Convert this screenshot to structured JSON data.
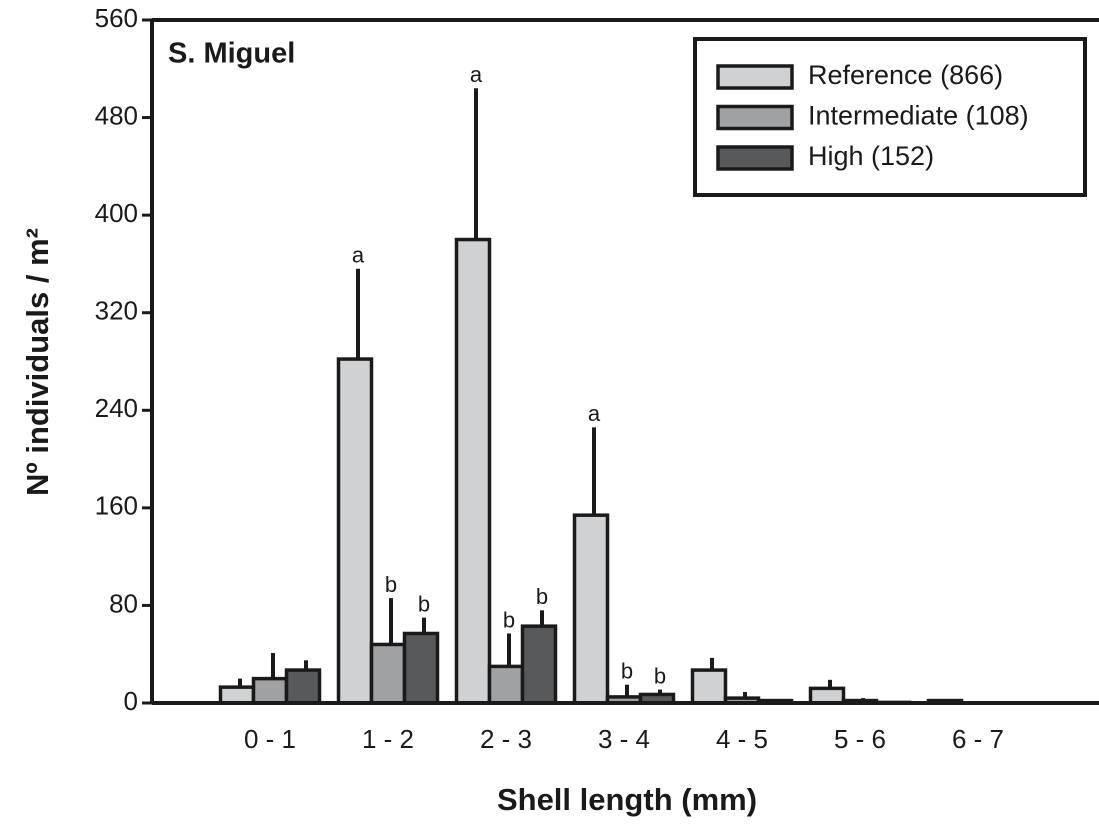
{
  "chart_data": {
    "type": "bar",
    "panel_label": "S. Miguel",
    "xlabel": "Shell length (mm)",
    "ylabel": "Nº individuals / m²",
    "categories": [
      "0 - 1",
      "1 - 2",
      "2 - 3",
      "3 - 4",
      "4 - 5",
      "5 - 6",
      "6 - 7"
    ],
    "series": [
      {
        "name": "Reference (866)",
        "color": "#d0d1d3",
        "values": [
          13,
          282,
          380,
          154,
          27,
          12,
          2
        ],
        "errors": [
          7,
          74,
          124,
          72,
          10,
          7,
          1
        ],
        "annotations": [
          null,
          "a",
          "a",
          "a",
          null,
          null,
          null
        ]
      },
      {
        "name": "Intermediate (108)",
        "color": "#a0a1a3",
        "values": [
          20,
          48,
          30,
          5,
          4,
          2,
          0
        ],
        "errors": [
          21,
          38,
          27,
          10,
          5,
          2,
          0
        ],
        "annotations": [
          null,
          "b",
          "b",
          "b",
          null,
          null,
          null
        ]
      },
      {
        "name": "High (152)",
        "color": "#58595b",
        "values": [
          27,
          57,
          63,
          7,
          2,
          0.5,
          0
        ],
        "errors": [
          8,
          13,
          13,
          4,
          1,
          0.5,
          0
        ],
        "annotations": [
          null,
          "b",
          "b",
          "b",
          null,
          null,
          null
        ]
      }
    ],
    "ylim": [
      0,
      560
    ],
    "yticks": [
      0,
      80,
      160,
      240,
      320,
      400,
      480,
      560
    ]
  }
}
